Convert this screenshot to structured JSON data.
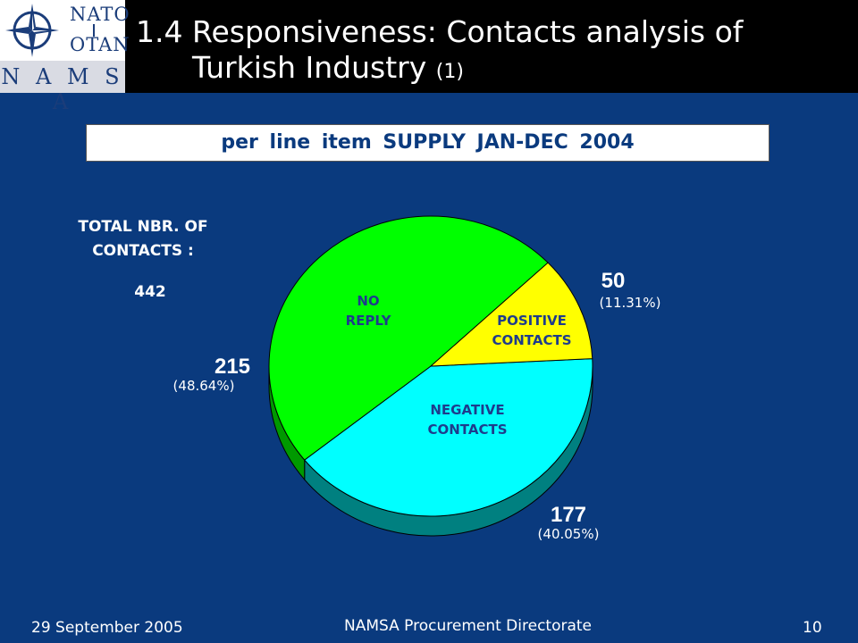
{
  "header": {
    "logo": {
      "nato": "NATO",
      "otan": "OTAN",
      "namsa": "N A M S A"
    },
    "title_number": "1.4",
    "title": "Responsiveness: Contacts analysis of Turkish Industry",
    "title_note": "(1)"
  },
  "subtitle": "per line item SUPPLY JAN-DEC 2004",
  "total": {
    "label_line1": "TOTAL NBR. OF",
    "label_line2": "CONTACTS :",
    "value": "442"
  },
  "chart_data": {
    "type": "pie",
    "title": "per line item SUPPLY JAN-DEC 2004",
    "total": 442,
    "slices": [
      {
        "name": "NO REPLY",
        "value": 215,
        "percent": "(48.64%)",
        "color": "#00ff00",
        "side_color": "#009900"
      },
      {
        "name": "POSITIVE CONTACTS",
        "value": 50,
        "percent": "(11.31%)",
        "color": "#ffff00",
        "side_color": "#999900"
      },
      {
        "name": "NEGATIVE CONTACTS",
        "value": 177,
        "percent": "(40.05%)",
        "color": "#00ffff",
        "side_color": "#008080"
      }
    ]
  },
  "footer": {
    "date": "29 September 2005",
    "organization": "NAMSA Procurement Directorate",
    "page": "10"
  },
  "colors": {
    "background": "#0a3a7e",
    "header": "#000000",
    "label_dark": "#1e3c8c",
    "value_text": "#ffffff"
  }
}
